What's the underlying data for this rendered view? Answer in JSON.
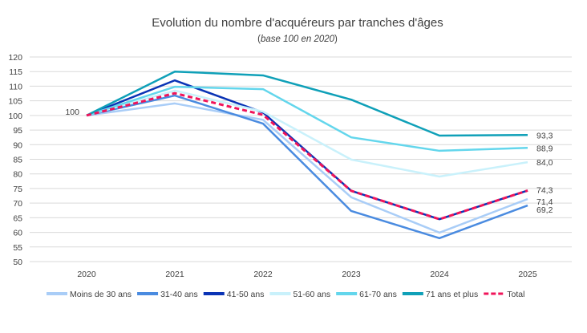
{
  "chart_data": {
    "type": "line",
    "title": "Evolution du nombre d'acquéreurs par tranches d'âges",
    "subtitle_prefix": "(",
    "subtitle": "base 100 en 2020",
    "subtitle_suffix": ")",
    "categories": [
      "2020",
      "2021",
      "2022",
      "2023",
      "2024",
      "2025"
    ],
    "ylim": [
      50,
      120
    ],
    "yticks": [
      50,
      55,
      60,
      65,
      70,
      75,
      80,
      85,
      90,
      95,
      100,
      105,
      110,
      115,
      120
    ],
    "grid": true,
    "legend_position": "bottom",
    "series": [
      {
        "name": "Moins de 30 ans",
        "color": "#A9CDF7",
        "values": [
          100,
          104.1,
          98.5,
          72.0,
          59.9,
          71.4
        ],
        "end_label": "71,4"
      },
      {
        "name": "31-40 ans",
        "color": "#4A8BE0",
        "values": [
          100,
          106.8,
          97.2,
          67.3,
          58.0,
          69.2
        ],
        "end_label": "69,2"
      },
      {
        "name": "41-50 ans",
        "color": "#0A33B5",
        "values": [
          100,
          112.0,
          101.0,
          74.2,
          64.5,
          74.3
        ]
      },
      {
        "name": "51-60 ans",
        "color": "#C9F1FB",
        "values": [
          100,
          108.5,
          101.3,
          84.9,
          79.1,
          84.0
        ],
        "end_label": "84,0"
      },
      {
        "name": "61-70 ans",
        "color": "#63D6EC",
        "values": [
          100,
          109.8,
          109.0,
          92.5,
          87.9,
          88.9
        ],
        "end_label": "88,9"
      },
      {
        "name": "71 ans et plus",
        "color": "#0FA0B8",
        "values": [
          100,
          115.0,
          113.7,
          105.4,
          93.1,
          93.3
        ],
        "end_label": "93,3"
      },
      {
        "name": "Total",
        "color": "#F0145A",
        "dashed": true,
        "values": [
          100,
          107.6,
          100.2,
          74.2,
          64.5,
          74.3
        ],
        "end_label": "74,3"
      }
    ],
    "start_label": "100"
  }
}
